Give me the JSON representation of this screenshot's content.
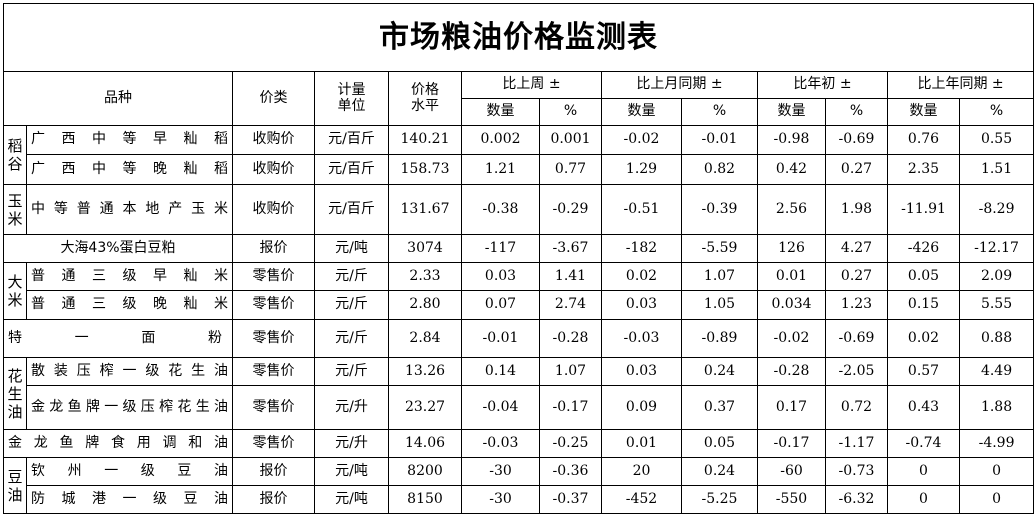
{
  "title": "市场粮油价格监测表",
  "headers": {
    "variety": "品种",
    "price_type": "价类",
    "unit_line1": "计量",
    "unit_line2": "单位",
    "price_line1": "价格",
    "price_line2": "水平",
    "groups": [
      "比上周 ±",
      "比上月同期 ±",
      "比年初 ±",
      "比上年同期 ±"
    ],
    "qty": "数量",
    "pct": "%"
  },
  "categories": {
    "rice_paddy": "稻谷",
    "corn": "玉米",
    "rice": "大米",
    "peanut_oil": "花生油",
    "soy_oil": "豆油"
  },
  "rows": [
    {
      "name": "广西中等早籼稻",
      "type": "收购价",
      "unit": "元/百斤",
      "price": "140.21",
      "v": [
        "0.002",
        "0.001",
        "-0.02",
        "-0.01",
        "-0.98",
        "-0.69",
        "0.76",
        "0.55"
      ]
    },
    {
      "name": "广西中等晚籼稻",
      "type": "收购价",
      "unit": "元/百斤",
      "price": "158.73",
      "v": [
        "1.21",
        "0.77",
        "1.29",
        "0.82",
        "0.42",
        "0.27",
        "2.35",
        "1.51"
      ]
    },
    {
      "name": "中等普通本地产玉米",
      "type": "收购价",
      "unit": "元/百斤",
      "price": "131.67",
      "v": [
        "-0.38",
        "-0.29",
        "-0.51",
        "-0.39",
        "2.56",
        "1.98",
        "-11.91",
        "-8.29"
      ]
    },
    {
      "name": "大海43%蛋白豆粕",
      "type": "报价",
      "unit": "元/吨",
      "price": "3074",
      "v": [
        "-117",
        "-3.67",
        "-182",
        "-5.59",
        "126",
        "4.27",
        "-426",
        "-12.17"
      ]
    },
    {
      "name": "普通三级早籼米",
      "type": "零售价",
      "unit": "元/斤",
      "price": "2.33",
      "v": [
        "0.03",
        "1.41",
        "0.02",
        "1.07",
        "0.01",
        "0.27",
        "0.05",
        "2.09"
      ]
    },
    {
      "name": "普通三级晚籼米",
      "type": "零售价",
      "unit": "元/斤",
      "price": "2.80",
      "v": [
        "0.07",
        "2.74",
        "0.03",
        "1.05",
        "0.034",
        "1.23",
        "0.15",
        "5.55"
      ]
    },
    {
      "name": "特一面粉",
      "type": "零售价",
      "unit": "元/斤",
      "price": "2.84",
      "v": [
        "-0.01",
        "-0.28",
        "-0.03",
        "-0.89",
        "-0.02",
        "-0.69",
        "0.02",
        "0.88"
      ]
    },
    {
      "name": "散装压榨一级花生油",
      "type": "零售价",
      "unit": "元/斤",
      "price": "13.26",
      "v": [
        "0.14",
        "1.07",
        "0.03",
        "0.24",
        "-0.28",
        "-2.05",
        "0.57",
        "4.49"
      ]
    },
    {
      "name": "金龙鱼牌一级压榨花生油",
      "type": "零售价",
      "unit": "元/升",
      "price": "23.27",
      "v": [
        "-0.04",
        "-0.17",
        "0.09",
        "0.37",
        "0.17",
        "0.72",
        "0.43",
        "1.88"
      ]
    },
    {
      "name": "金龙鱼牌食用调和油",
      "type": "零售价",
      "unit": "元/升",
      "price": "14.06",
      "v": [
        "-0.03",
        "-0.25",
        "0.01",
        "0.05",
        "-0.17",
        "-1.17",
        "-0.74",
        "-4.99"
      ]
    },
    {
      "name": "钦州一级豆油",
      "type": "报价",
      "unit": "元/吨",
      "price": "8200",
      "v": [
        "-30",
        "-0.36",
        "20",
        "0.24",
        "-60",
        "-0.73",
        "0",
        "0"
      ]
    },
    {
      "name": "防城港一级豆油",
      "type": "报价",
      "unit": "元/吨",
      "price": "8150",
      "v": [
        "-30",
        "-0.37",
        "-452",
        "-5.25",
        "-550",
        "-6.32",
        "0",
        "0"
      ]
    }
  ]
}
